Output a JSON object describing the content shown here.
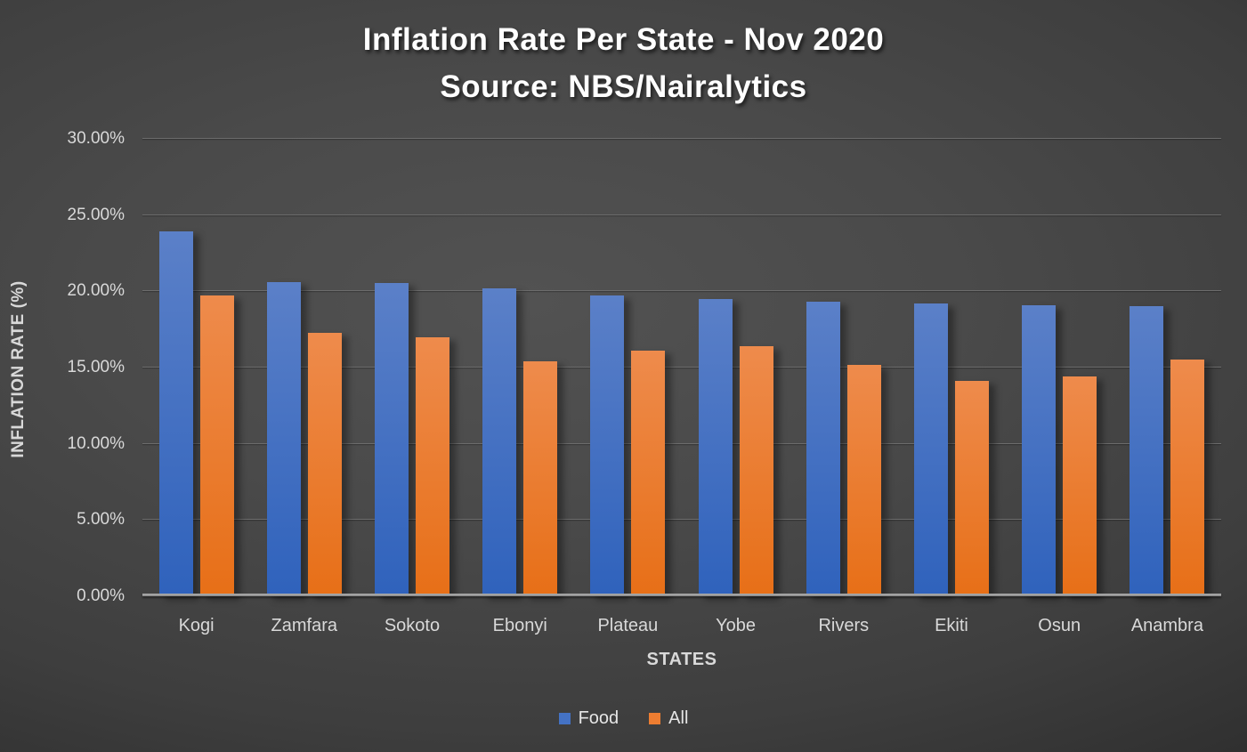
{
  "title": {
    "line1": "Inflation Rate Per State - Nov 2020",
    "line2": "Source: NBS/Nairalytics"
  },
  "chart_data": {
    "type": "bar",
    "categories": [
      "Kogi",
      "Zamfara",
      "Sokoto",
      "Ebonyi",
      "Plateau",
      "Yobe",
      "Rivers",
      "Ekiti",
      "Osun",
      "Anambra"
    ],
    "series": [
      {
        "name": "Food",
        "color": "#4472C4",
        "gradient_top": "#5b80c8",
        "gradient_bottom": "#2f62bc",
        "values": [
          23.95,
          20.6,
          20.55,
          20.2,
          19.7,
          19.5,
          19.3,
          19.2,
          19.1,
          19.05
        ]
      },
      {
        "name": "All",
        "color": "#ED7D31",
        "gradient_top": "#ee8b4c",
        "gradient_bottom": "#e76f17",
        "values": [
          19.75,
          17.3,
          17.0,
          15.4,
          16.1,
          16.4,
          15.2,
          14.1,
          14.4,
          15.55
        ]
      }
    ],
    "title": "Inflation Rate Per State - Nov 2020",
    "subtitle": "Source: NBS/Nairalytics",
    "xlabel": "STATES",
    "ylabel": "INFLATION RATE (%)",
    "ylim": [
      0,
      30
    ],
    "ytick_step": 5,
    "ytick_labels": [
      "0.00%",
      "5.00%",
      "10.00%",
      "15.00%",
      "20.00%",
      "25.00%",
      "30.00%"
    ],
    "grid": true,
    "legend_position": "bottom"
  },
  "styles": {
    "text_color": "#d9d9d9",
    "title_color": "#ffffff",
    "gridline_color": "#6c6c6c",
    "axis_line_color": "#9b9b9b",
    "background_center": "#4f4f4f",
    "background_edge": "#262626"
  }
}
